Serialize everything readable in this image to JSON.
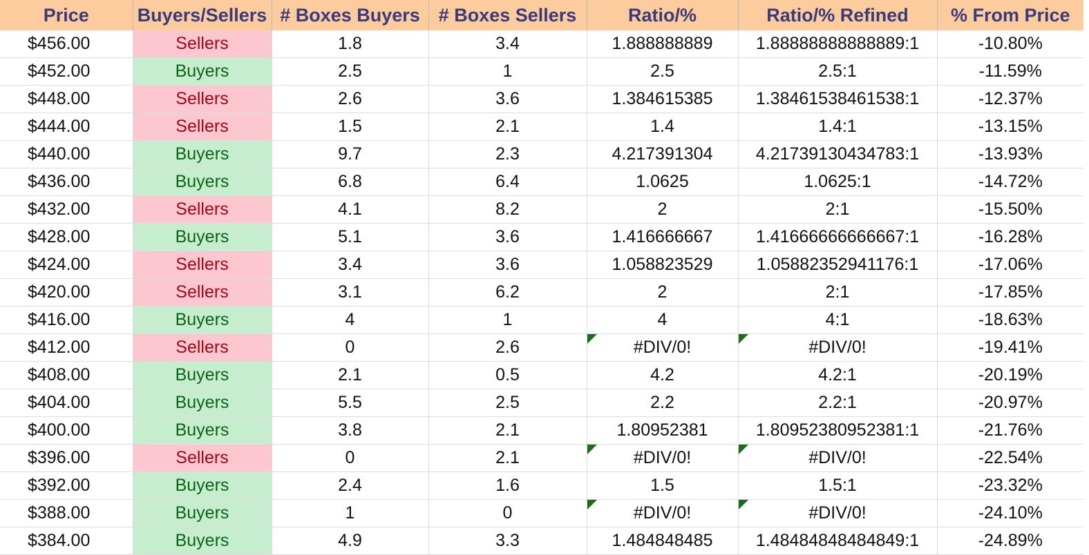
{
  "headers": [
    "Price",
    "Buyers/Sellers",
    "# Boxes Buyers",
    "# Boxes Sellers",
    "Ratio/%",
    "Ratio/% Refined",
    "% From Price"
  ],
  "colors": {
    "header_bg": "#fccc9f",
    "header_text": "#3c3a7a",
    "sellers_bg": "#fcc7ce",
    "sellers_text": "#a0061c",
    "buyers_bg": "#c6eece",
    "buyers_text": "#0c6418",
    "error_flag": "#1e6b1e"
  },
  "rows": [
    {
      "price": "$456.00",
      "side": "Sellers",
      "boxes_buyers": "1.8",
      "boxes_sellers": "3.4",
      "ratio": "1.888888889",
      "ratio_refined": "1.88888888888889:1",
      "pct_from_price": "-10.80%"
    },
    {
      "price": "$452.00",
      "side": "Buyers",
      "boxes_buyers": "2.5",
      "boxes_sellers": "1",
      "ratio": "2.5",
      "ratio_refined": "2.5:1",
      "pct_from_price": "-11.59%"
    },
    {
      "price": "$448.00",
      "side": "Sellers",
      "boxes_buyers": "2.6",
      "boxes_sellers": "3.6",
      "ratio": "1.384615385",
      "ratio_refined": "1.38461538461538:1",
      "pct_from_price": "-12.37%"
    },
    {
      "price": "$444.00",
      "side": "Sellers",
      "boxes_buyers": "1.5",
      "boxes_sellers": "2.1",
      "ratio": "1.4",
      "ratio_refined": "1.4:1",
      "pct_from_price": "-13.15%"
    },
    {
      "price": "$440.00",
      "side": "Buyers",
      "boxes_buyers": "9.7",
      "boxes_sellers": "2.3",
      "ratio": "4.217391304",
      "ratio_refined": "4.21739130434783:1",
      "pct_from_price": "-13.93%"
    },
    {
      "price": "$436.00",
      "side": "Buyers",
      "boxes_buyers": "6.8",
      "boxes_sellers": "6.4",
      "ratio": "1.0625",
      "ratio_refined": "1.0625:1",
      "pct_from_price": "-14.72%"
    },
    {
      "price": "$432.00",
      "side": "Sellers",
      "boxes_buyers": "4.1",
      "boxes_sellers": "8.2",
      "ratio": "2",
      "ratio_refined": "2:1",
      "pct_from_price": "-15.50%"
    },
    {
      "price": "$428.00",
      "side": "Buyers",
      "boxes_buyers": "5.1",
      "boxes_sellers": "3.6",
      "ratio": "1.416666667",
      "ratio_refined": "1.41666666666667:1",
      "pct_from_price": "-16.28%"
    },
    {
      "price": "$424.00",
      "side": "Sellers",
      "boxes_buyers": "3.4",
      "boxes_sellers": "3.6",
      "ratio": "1.058823529",
      "ratio_refined": "1.05882352941176:1",
      "pct_from_price": "-17.06%"
    },
    {
      "price": "$420.00",
      "side": "Sellers",
      "boxes_buyers": "3.1",
      "boxes_sellers": "6.2",
      "ratio": "2",
      "ratio_refined": "2:1",
      "pct_from_price": "-17.85%"
    },
    {
      "price": "$416.00",
      "side": "Buyers",
      "boxes_buyers": "4",
      "boxes_sellers": "1",
      "ratio": "4",
      "ratio_refined": "4:1",
      "pct_from_price": "-18.63%"
    },
    {
      "price": "$412.00",
      "side": "Sellers",
      "boxes_buyers": "0",
      "boxes_sellers": "2.6",
      "ratio": "#DIV/0!",
      "ratio_refined": "#DIV/0!",
      "pct_from_price": "-19.41%",
      "error_flag": true
    },
    {
      "price": "$408.00",
      "side": "Buyers",
      "boxes_buyers": "2.1",
      "boxes_sellers": "0.5",
      "ratio": "4.2",
      "ratio_refined": "4.2:1",
      "pct_from_price": "-20.19%"
    },
    {
      "price": "$404.00",
      "side": "Buyers",
      "boxes_buyers": "5.5",
      "boxes_sellers": "2.5",
      "ratio": "2.2",
      "ratio_refined": "2.2:1",
      "pct_from_price": "-20.97%"
    },
    {
      "price": "$400.00",
      "side": "Buyers",
      "boxes_buyers": "3.8",
      "boxes_sellers": "2.1",
      "ratio": "1.80952381",
      "ratio_refined": "1.80952380952381:1",
      "pct_from_price": "-21.76%"
    },
    {
      "price": "$396.00",
      "side": "Sellers",
      "boxes_buyers": "0",
      "boxes_sellers": "2.1",
      "ratio": "#DIV/0!",
      "ratio_refined": "#DIV/0!",
      "pct_from_price": "-22.54%",
      "error_flag": true
    },
    {
      "price": "$392.00",
      "side": "Buyers",
      "boxes_buyers": "2.4",
      "boxes_sellers": "1.6",
      "ratio": "1.5",
      "ratio_refined": "1.5:1",
      "pct_from_price": "-23.32%"
    },
    {
      "price": "$388.00",
      "side": "Buyers",
      "boxes_buyers": "1",
      "boxes_sellers": "0",
      "ratio": "#DIV/0!",
      "ratio_refined": "#DIV/0!",
      "pct_from_price": "-24.10%",
      "error_flag": true
    },
    {
      "price": "$384.00",
      "side": "Buyers",
      "boxes_buyers": "4.9",
      "boxes_sellers": "3.3",
      "ratio": "1.484848485",
      "ratio_refined": "1.48484848484849:1",
      "pct_from_price": "-24.89%"
    }
  ]
}
